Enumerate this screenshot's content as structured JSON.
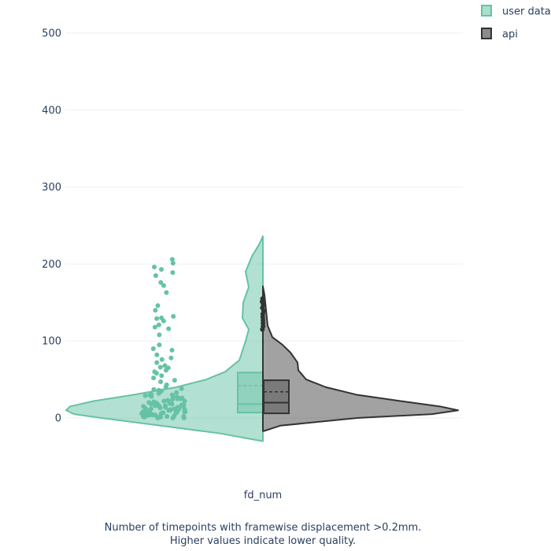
{
  "chart_data": {
    "type": "violin",
    "title": "",
    "xlabel": "",
    "ylabel": "",
    "ylim": [
      -50,
      520
    ],
    "yticks": [
      0,
      100,
      200,
      300,
      400,
      500
    ],
    "grid": true,
    "legend_position": "top-right",
    "categories": [
      "fd_num"
    ],
    "series": [
      {
        "name": "user data",
        "side": "left",
        "color": "#66c2a5",
        "box": {
          "q1": 7,
          "median": 18,
          "q3": 59,
          "mean": 42
        },
        "range": [
          -30,
          236
        ],
        "density": [
          [
            -30,
            1
          ],
          [
            -20,
            55
          ],
          [
            -10,
            130
          ],
          [
            0,
            205
          ],
          [
            5,
            240
          ],
          [
            10,
            250
          ],
          [
            15,
            245
          ],
          [
            22,
            215
          ],
          [
            30,
            165
          ],
          [
            40,
            110
          ],
          [
            50,
            72
          ],
          [
            60,
            48
          ],
          [
            75,
            30
          ],
          [
            100,
            22
          ],
          [
            115,
            18
          ],
          [
            130,
            26
          ],
          [
            150,
            25
          ],
          [
            170,
            18
          ],
          [
            190,
            22
          ],
          [
            210,
            14
          ],
          [
            225,
            5
          ],
          [
            236,
            0
          ]
        ],
        "points": [
          206,
          201,
          196,
          193,
          189,
          185,
          176,
          172,
          163,
          146,
          140,
          132,
          130,
          129,
          126,
          121,
          118,
          116,
          108,
          95,
          90,
          88,
          82,
          78,
          76,
          72,
          68,
          66,
          65,
          62,
          60,
          58,
          55,
          52,
          49,
          47,
          43,
          40,
          38,
          37,
          36,
          35,
          34,
          33,
          33,
          32,
          31,
          30,
          30,
          29,
          28,
          28,
          27,
          26,
          25,
          25,
          24,
          23,
          22,
          22,
          21,
          20,
          20,
          19,
          19,
          18,
          18,
          17,
          17,
          16,
          16,
          16,
          15,
          15,
          14,
          14,
          14,
          13,
          13,
          12,
          12,
          12,
          11,
          11,
          11,
          10,
          10,
          10,
          9,
          9,
          9,
          8,
          8,
          8,
          7,
          7,
          7,
          6,
          6,
          6,
          5,
          5,
          5,
          4,
          4,
          4,
          3,
          3,
          3,
          2,
          2,
          2,
          1,
          1,
          1,
          0,
          0,
          0
        ]
      },
      {
        "name": "api",
        "side": "right",
        "color": "#7f7f7f",
        "box": {
          "q1": 6,
          "median": 20,
          "q3": 49,
          "mean": 34
        },
        "range": [
          -17,
          171
        ],
        "density": [
          [
            -17,
            1
          ],
          [
            -10,
            22
          ],
          [
            0,
            120
          ],
          [
            5,
            215
          ],
          [
            10,
            248
          ],
          [
            15,
            225
          ],
          [
            22,
            175
          ],
          [
            30,
            120
          ],
          [
            40,
            80
          ],
          [
            50,
            55
          ],
          [
            62,
            45
          ],
          [
            72,
            44
          ],
          [
            85,
            35
          ],
          [
            95,
            25
          ],
          [
            105,
            12
          ],
          [
            120,
            6
          ],
          [
            140,
            4
          ],
          [
            160,
            2
          ],
          [
            171,
            0
          ]
        ],
        "points": [
          155,
          151,
          147,
          143,
          139,
          135,
          131,
          127,
          123,
          119,
          115
        ]
      }
    ]
  },
  "xaxis_label": "fd_num",
  "caption": {
    "line1": "Number of timepoints with framewise displacement >0.2mm.",
    "line2": "Higher values indicate lower quality."
  }
}
